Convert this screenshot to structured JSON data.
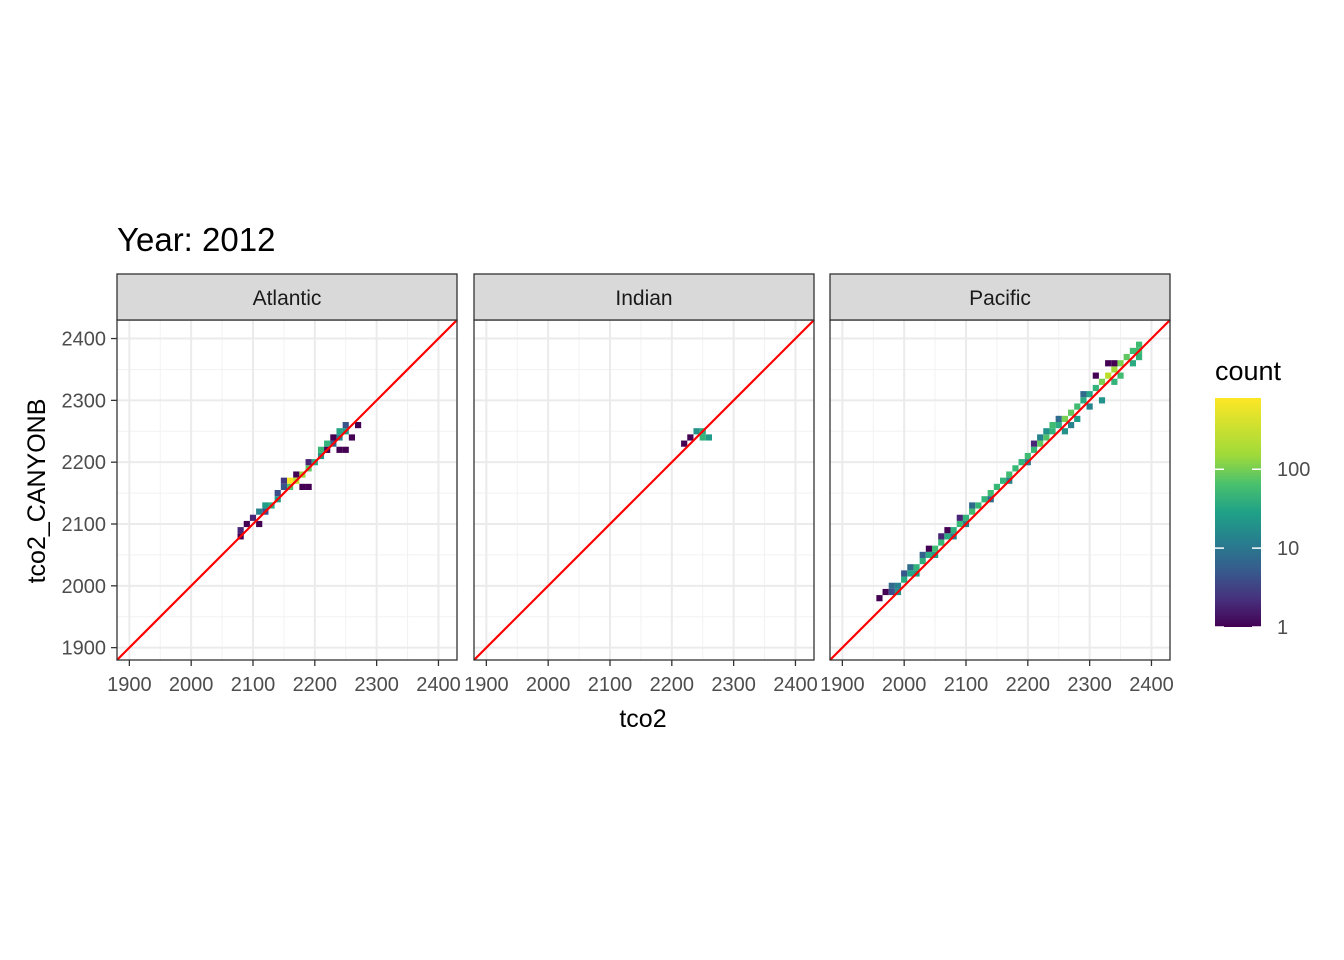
{
  "chart_data": {
    "type": "heatmap",
    "title": "Year: 2012",
    "xlabel": "tco2",
    "ylabel": "tco2_CANYONB",
    "xlim": [
      1880,
      2430
    ],
    "ylim": [
      1880,
      2430
    ],
    "x_ticks": [
      "1900",
      "2000",
      "2100",
      "2200",
      "2300",
      "2400"
    ],
    "y_ticks": [
      "1900",
      "2000",
      "2100",
      "2200",
      "2300",
      "2400"
    ],
    "bin_width": 10,
    "reference_line": {
      "slope": 1,
      "intercept": 0,
      "color": "#ff0000"
    },
    "legend": {
      "title": "count",
      "scale": "log10",
      "ticks": [
        "1",
        "10",
        "100"
      ],
      "range": [
        1,
        800
      ],
      "placement": "right"
    },
    "panels": [
      {
        "name": "Atlantic",
        "bins": [
          [
            2080,
            2090,
            2
          ],
          [
            2080,
            2080,
            1
          ],
          [
            2090,
            2100,
            1
          ],
          [
            2100,
            2110,
            2
          ],
          [
            2110,
            2120,
            20
          ],
          [
            2120,
            2120,
            5
          ],
          [
            2110,
            2100,
            1
          ],
          [
            2120,
            2130,
            40
          ],
          [
            2130,
            2130,
            60
          ],
          [
            2140,
            2150,
            5
          ],
          [
            2140,
            2140,
            40
          ],
          [
            2150,
            2160,
            6
          ],
          [
            2150,
            2170,
            3
          ],
          [
            2160,
            2170,
            800
          ],
          [
            2160,
            2160,
            120
          ],
          [
            2170,
            2180,
            1
          ],
          [
            2170,
            2170,
            400
          ],
          [
            2180,
            2180,
            300
          ],
          [
            2180,
            2160,
            1
          ],
          [
            2190,
            2160,
            1
          ],
          [
            2190,
            2190,
            150
          ],
          [
            2190,
            2200,
            2
          ],
          [
            2200,
            2200,
            60
          ],
          [
            2210,
            2210,
            30
          ],
          [
            2210,
            2220,
            90
          ],
          [
            2220,
            2230,
            80
          ],
          [
            2220,
            2220,
            1
          ],
          [
            2230,
            2230,
            8
          ],
          [
            2230,
            2240,
            1
          ],
          [
            2240,
            2240,
            20
          ],
          [
            2240,
            2250,
            50
          ],
          [
            2240,
            2220,
            1
          ],
          [
            2250,
            2250,
            40
          ],
          [
            2250,
            2260,
            6
          ],
          [
            2250,
            2220,
            1
          ],
          [
            2260,
            2240,
            1
          ],
          [
            2270,
            2260,
            1
          ]
        ]
      },
      {
        "name": "Indian",
        "bins": [
          [
            2220,
            2230,
            1
          ],
          [
            2230,
            2240,
            1
          ],
          [
            2240,
            2250,
            30
          ],
          [
            2250,
            2250,
            60
          ],
          [
            2250,
            2240,
            80
          ],
          [
            2260,
            2240,
            40
          ]
        ]
      },
      {
        "name": "Pacific",
        "bins": [
          [
            1960,
            1980,
            1
          ],
          [
            1970,
            1990,
            1
          ],
          [
            1980,
            1990,
            5
          ],
          [
            1980,
            2000,
            10
          ],
          [
            1990,
            1990,
            30
          ],
          [
            1990,
            2000,
            20
          ],
          [
            2000,
            2010,
            60
          ],
          [
            2000,
            2020,
            6
          ],
          [
            2010,
            2020,
            50
          ],
          [
            2010,
            2030,
            10
          ],
          [
            2020,
            2020,
            40
          ],
          [
            2020,
            2030,
            80
          ],
          [
            2030,
            2040,
            70
          ],
          [
            2030,
            2050,
            8
          ],
          [
            2040,
            2050,
            60
          ],
          [
            2040,
            2060,
            1
          ],
          [
            2050,
            2060,
            100
          ],
          [
            2050,
            2050,
            40
          ],
          [
            2060,
            2070,
            90
          ],
          [
            2060,
            2080,
            2
          ],
          [
            2070,
            2080,
            60
          ],
          [
            2070,
            2090,
            1
          ],
          [
            2080,
            2090,
            70
          ],
          [
            2080,
            2080,
            20
          ],
          [
            2090,
            2100,
            90
          ],
          [
            2090,
            2110,
            2
          ],
          [
            2100,
            2110,
            80
          ],
          [
            2100,
            2100,
            20
          ],
          [
            2110,
            2120,
            100
          ],
          [
            2110,
            2130,
            10
          ],
          [
            2120,
            2130,
            90
          ],
          [
            2130,
            2140,
            80
          ],
          [
            2140,
            2150,
            100
          ],
          [
            2140,
            2140,
            10
          ],
          [
            2150,
            2160,
            90
          ],
          [
            2160,
            2170,
            80
          ],
          [
            2170,
            2180,
            100
          ],
          [
            2170,
            2170,
            20
          ],
          [
            2180,
            2190,
            90
          ],
          [
            2190,
            2200,
            80
          ],
          [
            2200,
            2210,
            100
          ],
          [
            2200,
            2200,
            15
          ],
          [
            2210,
            2220,
            90
          ],
          [
            2210,
            2230,
            2
          ],
          [
            2220,
            2230,
            150
          ],
          [
            2220,
            2240,
            20
          ],
          [
            2230,
            2240,
            120
          ],
          [
            2230,
            2250,
            30
          ],
          [
            2240,
            2250,
            80
          ],
          [
            2240,
            2260,
            100
          ],
          [
            2250,
            2260,
            60
          ],
          [
            2250,
            2270,
            10
          ],
          [
            2260,
            2270,
            200
          ],
          [
            2260,
            2250,
            30
          ],
          [
            2270,
            2280,
            150
          ],
          [
            2270,
            2260,
            20
          ],
          [
            2280,
            2290,
            100
          ],
          [
            2280,
            2270,
            40
          ],
          [
            2290,
            2300,
            60
          ],
          [
            2290,
            2310,
            10
          ],
          [
            2300,
            2310,
            50
          ],
          [
            2300,
            2290,
            20
          ],
          [
            2310,
            2320,
            80
          ],
          [
            2310,
            2340,
            1
          ],
          [
            2320,
            2330,
            200
          ],
          [
            2320,
            2300,
            30
          ],
          [
            2330,
            2340,
            400
          ],
          [
            2330,
            2360,
            1
          ],
          [
            2340,
            2350,
            300
          ],
          [
            2340,
            2330,
            80
          ],
          [
            2340,
            2360,
            1
          ],
          [
            2350,
            2360,
            200
          ],
          [
            2350,
            2340,
            100
          ],
          [
            2360,
            2370,
            150
          ],
          [
            2370,
            2380,
            100
          ],
          [
            2370,
            2360,
            60
          ],
          [
            2380,
            2380,
            100
          ],
          [
            2380,
            2370,
            80
          ],
          [
            2380,
            2390,
            100
          ]
        ]
      }
    ]
  }
}
